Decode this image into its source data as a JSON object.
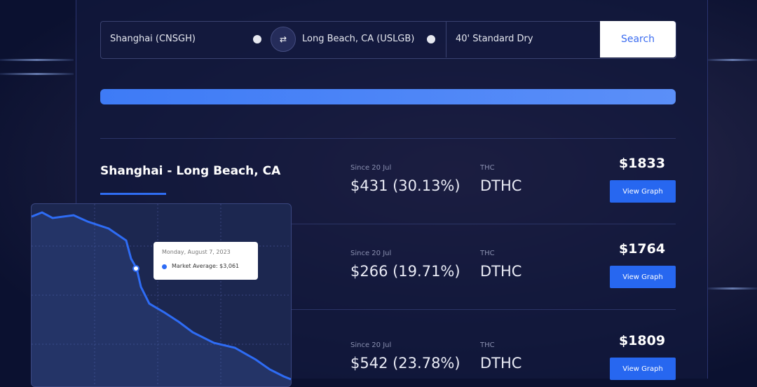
{
  "search": {
    "origin": "Shanghai (CNSGH)",
    "destination": "Long Beach, CA (USLGB)",
    "container": "40' Standard Dry",
    "button": "Search"
  },
  "results": [
    {
      "route": "Shanghai - Long Beach, CA",
      "change_label": "Since 20 Jul",
      "change": "$431 (30.13%)",
      "fee_label": "THC",
      "fee": "DTHC",
      "price": "$1833",
      "button": "View Graph"
    },
    {
      "change_label": "Since 20 Jul",
      "change": "$266 (19.71%)",
      "fee_label": "THC",
      "fee": "DTHC",
      "price": "$1764",
      "button": "View Graph"
    },
    {
      "change_label": "Since 20 Jul",
      "change": "$542 (23.78%)",
      "fee_label": "THC",
      "fee": "DTHC",
      "price": "$1809",
      "button": "View Graph"
    }
  ],
  "tooltip": {
    "date": "Monday, August 7, 2023",
    "label": "Market Average: $3,061"
  }
}
